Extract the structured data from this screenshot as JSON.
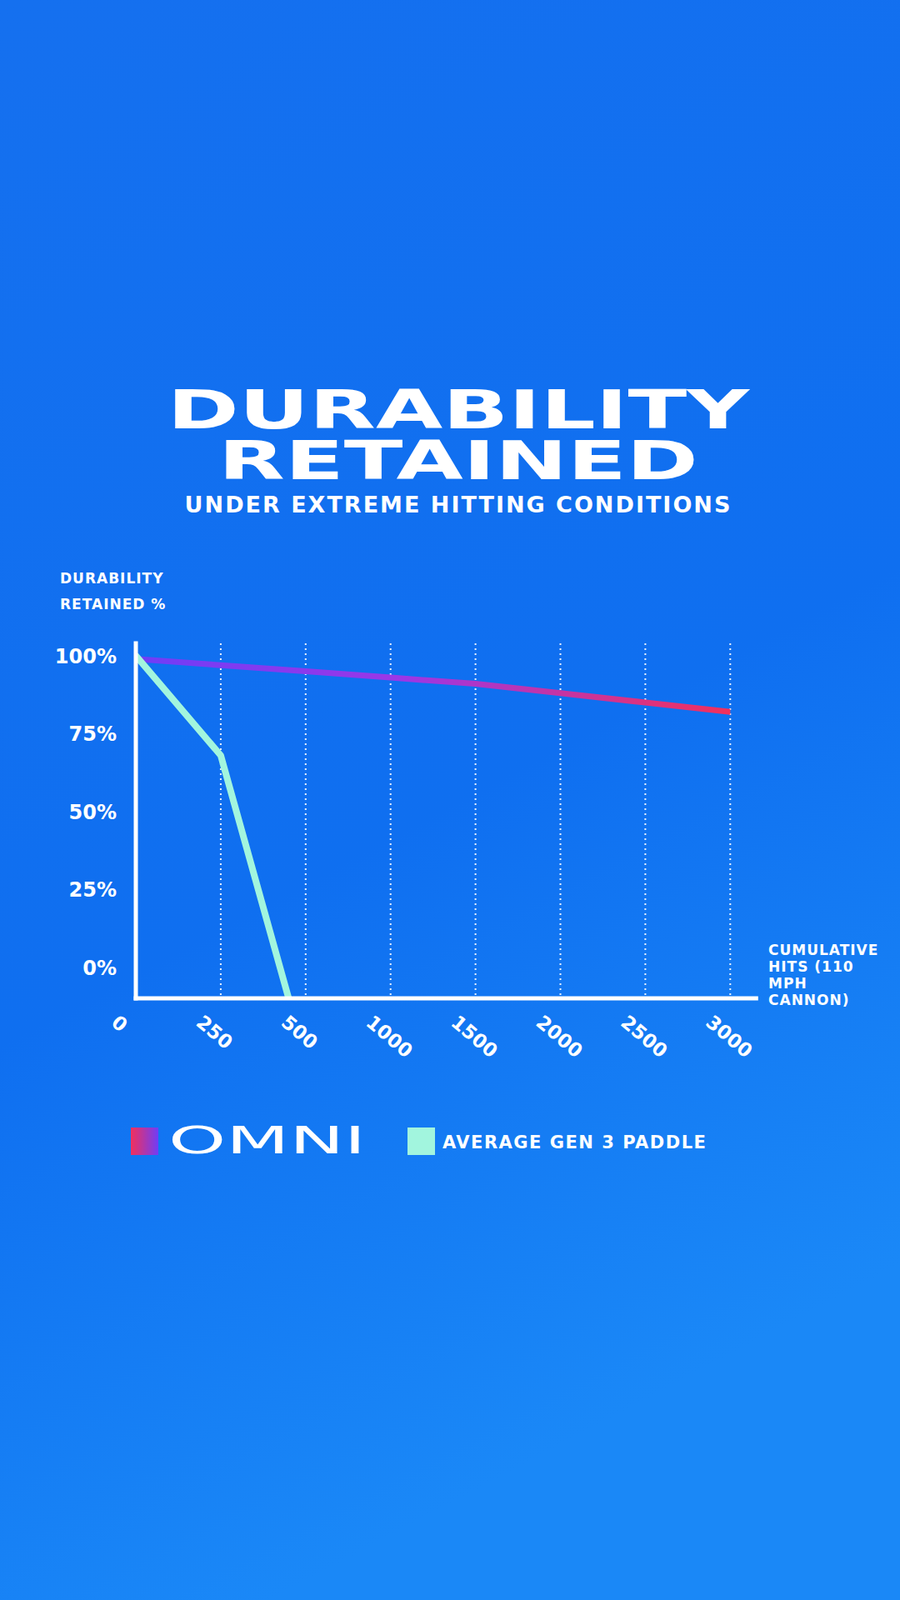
{
  "chart_data": {
    "type": "line",
    "title": "DURABILITY RETAINED",
    "subtitle": "UNDER EXTREME HITTING CONDITIONS",
    "y_label": "DURABILITY RETAINED %",
    "x_label": "CUMULATIVE HITS (110 MPH CANNON)",
    "xlim": [
      0,
      3000
    ],
    "xticks": [
      0,
      250,
      500,
      1000,
      1500,
      2000,
      2500,
      3000
    ],
    "ylim": [
      -10,
      104
    ],
    "yticks": [
      {
        "value": 0,
        "label": "0%"
      },
      {
        "value": 25,
        "label": "25%"
      },
      {
        "value": 50,
        "label": "50%"
      },
      {
        "value": 75,
        "label": "75%"
      },
      {
        "value": 100,
        "label": "100%"
      }
    ],
    "grid": true,
    "legend": "bottom",
    "series": [
      {
        "name": "OMNI",
        "color": "#f2305c",
        "x": [
          0,
          250,
          500,
          1000,
          1500,
          2000,
          2500,
          3000
        ],
        "values": [
          99,
          97,
          95,
          93,
          91,
          88,
          85,
          82
        ]
      },
      {
        "name": "AVERAGE GEN 3 PADDLE",
        "color": "#a2f5de",
        "x": [
          0,
          250,
          450
        ],
        "values": [
          100,
          68,
          -10
        ]
      }
    ]
  }
}
